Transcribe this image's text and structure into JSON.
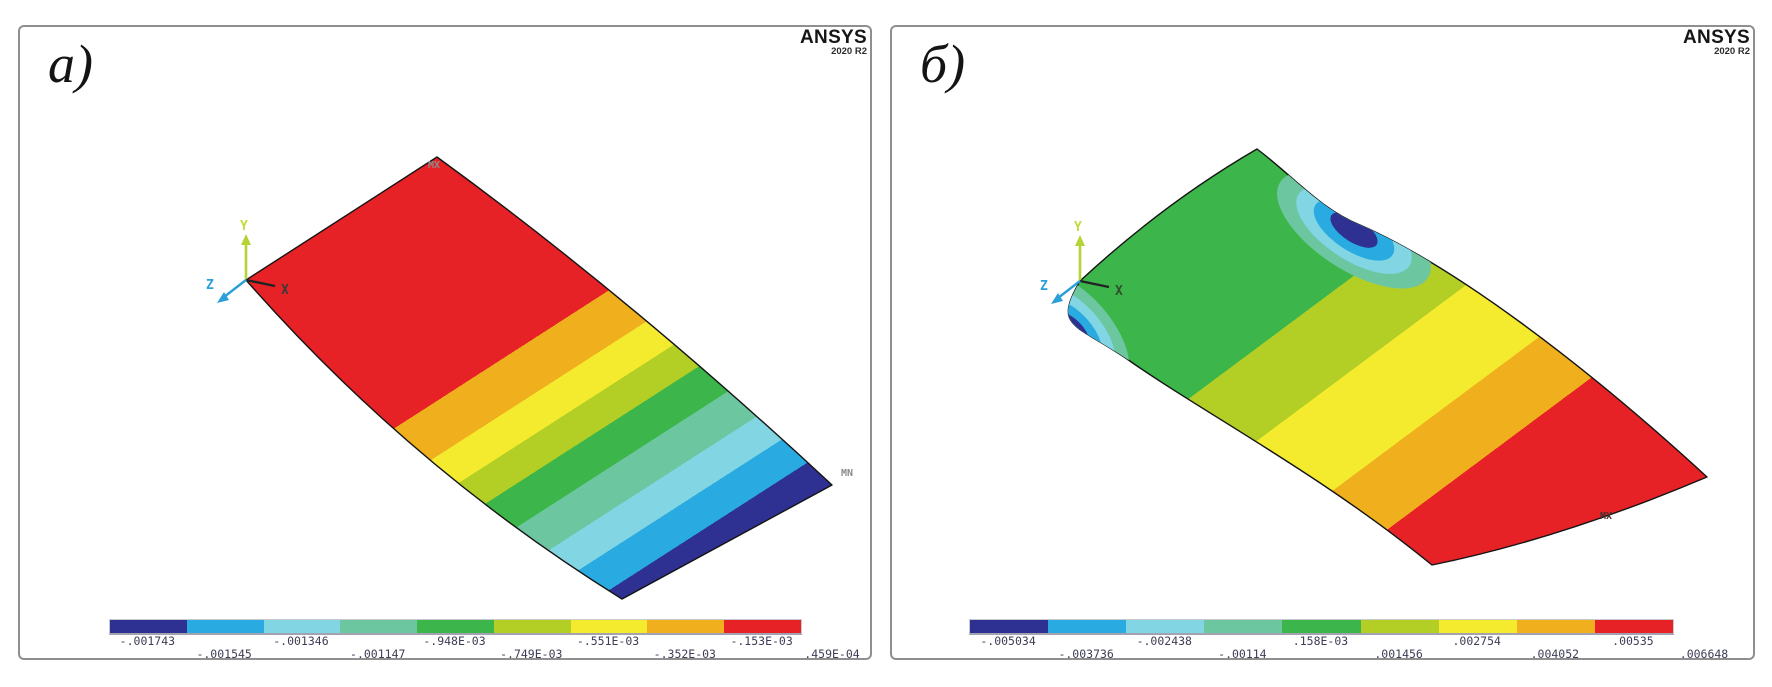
{
  "palette": {
    "navy": "#2e3192",
    "sky": "#29abe2",
    "cyan": "#82d5e2",
    "seafoam": "#6cc7a1",
    "green": "#3cb54a",
    "ygreen": "#b3cf26",
    "yellow": "#f4eb2f",
    "amber": "#f0b01d",
    "red": "#e62227"
  },
  "panels": [
    {
      "id": "a",
      "label": "а)",
      "ansys_name": "ANSYS",
      "ansys_version": "2020 R2",
      "triad": {
        "x": "X",
        "y": "Y",
        "z": "Z"
      },
      "markers": {
        "max": "MX",
        "min": "MN"
      },
      "legend": {
        "labels": [
          "-.001743",
          "-.001545",
          "-.001346",
          "-.001147",
          "-.948E-03",
          "-.749E-03",
          "-.551E-03",
          "-.352E-03",
          "-.153E-03",
          ".459E-04"
        ],
        "colors": [
          "navy",
          "sky",
          "cyan",
          "seafoam",
          "green",
          "ygreen",
          "yellow",
          "amber",
          "red"
        ]
      }
    },
    {
      "id": "b",
      "label": "б)",
      "ansys_name": "ANSYS",
      "ansys_version": "2020 R2",
      "triad": {
        "x": "X",
        "y": "Y",
        "z": "Z"
      },
      "markers": {
        "max": "MX"
      },
      "legend": {
        "labels": [
          "-.005034",
          "-.003736",
          "-.002438",
          "-.00114",
          ".158E-03",
          ".001456",
          ".002754",
          ".004052",
          ".00535",
          ".006648"
        ],
        "colors": [
          "navy",
          "sky",
          "cyan",
          "seafoam",
          "green",
          "ygreen",
          "yellow",
          "amber",
          "red"
        ]
      }
    }
  ],
  "chart_data": [
    {
      "type": "heatmap",
      "subtype": "fem-contour-plot",
      "panel": "а)",
      "software_banner": "ANSYS 2020 R2",
      "colorbar_labels": [
        "-.001743",
        "-.001545",
        "-.001346",
        "-.001147",
        "-.948E-03",
        "-.749E-03",
        "-.551E-03",
        "-.352E-03",
        "-.153E-03",
        ".459E-04"
      ],
      "colorbar_values": [
        -0.001743,
        -0.001545,
        -0.001346,
        -0.001147,
        -0.000948,
        -0.000749,
        -0.000551,
        -0.000352,
        -0.000153,
        4.59e-05
      ],
      "value_min": -0.001743,
      "value_max": 4.59e-05,
      "n_bands": 9,
      "band_colors": [
        "#2e3192",
        "#29abe2",
        "#82d5e2",
        "#6cc7a1",
        "#3cb54a",
        "#b3cf26",
        "#f4eb2f",
        "#f0b01d",
        "#e62227"
      ],
      "annotations": [
        "MX",
        "MN"
      ],
      "axes_triad": [
        "X",
        "Y",
        "Z"
      ],
      "legend_position": "bottom"
    },
    {
      "type": "heatmap",
      "subtype": "fem-contour-plot",
      "panel": "б)",
      "software_banner": "ANSYS 2020 R2",
      "colorbar_labels": [
        "-.005034",
        "-.003736",
        "-.002438",
        "-.00114",
        ".158E-03",
        ".001456",
        ".002754",
        ".004052",
        ".00535",
        ".006648"
      ],
      "colorbar_values": [
        -0.005034,
        -0.003736,
        -0.002438,
        -0.00114,
        0.000158,
        0.001456,
        0.002754,
        0.004052,
        0.00535,
        0.006648
      ],
      "value_min": -0.005034,
      "value_max": 0.006648,
      "n_bands": 9,
      "band_colors": [
        "#2e3192",
        "#29abe2",
        "#82d5e2",
        "#6cc7a1",
        "#3cb54a",
        "#b3cf26",
        "#f4eb2f",
        "#f0b01d",
        "#e62227"
      ],
      "annotations": [
        "MX"
      ],
      "axes_triad": [
        "X",
        "Y",
        "Z"
      ],
      "legend_position": "bottom"
    }
  ]
}
